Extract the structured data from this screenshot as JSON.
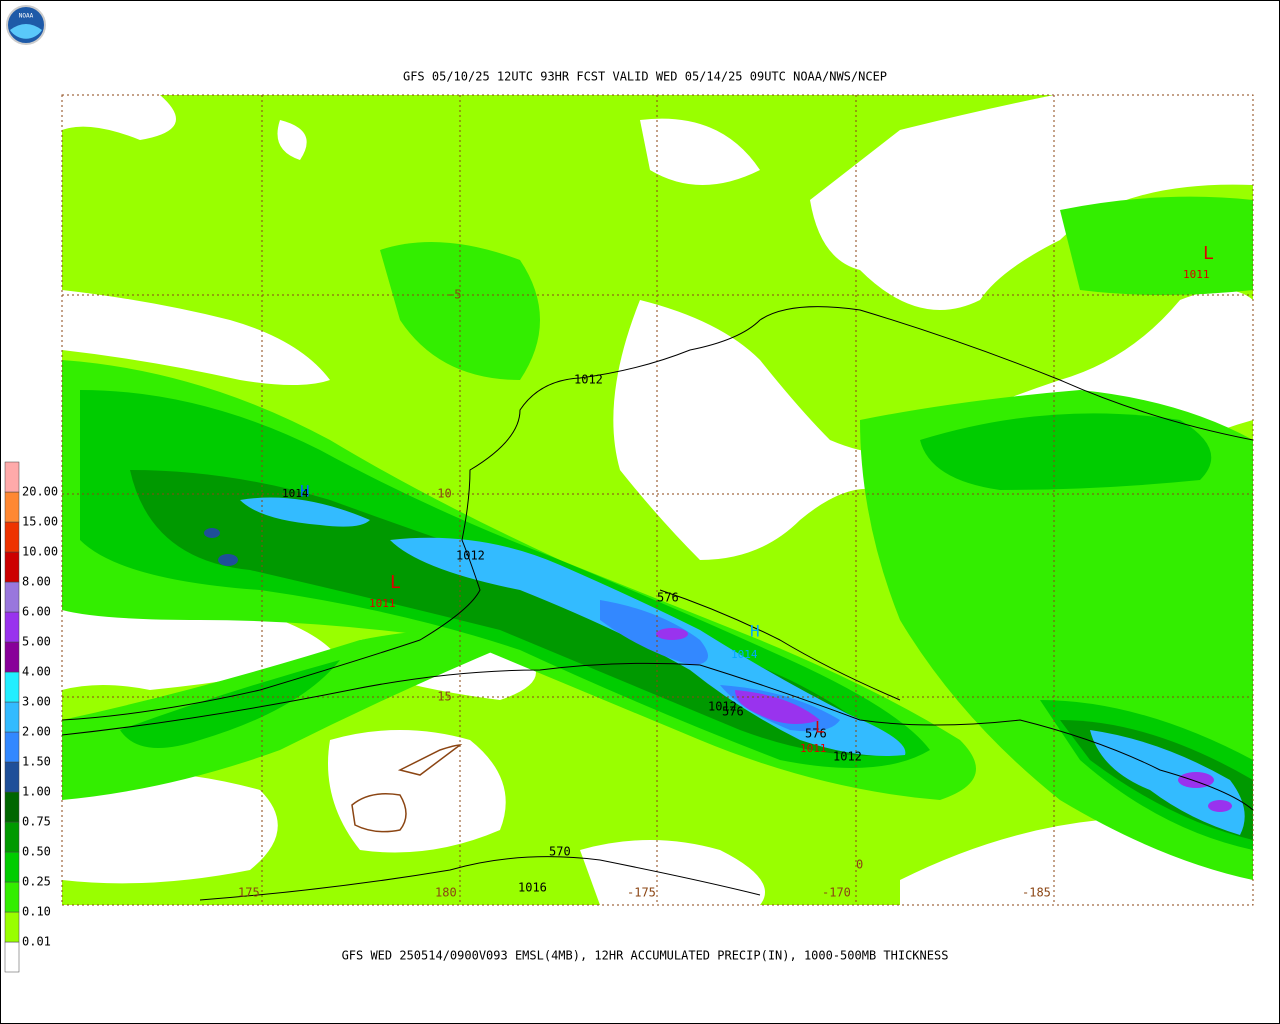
{
  "logo": "NOAA",
  "header": {
    "title": "GFS 05/10/25 12UTC 93HR FCST VALID WED 05/14/25 09UTC NOAA/NWS/NCEP"
  },
  "footer": {
    "caption": "GFS WED 250514/0900V093 EMSL(4MB), 12HR ACCUMULATED PRECIP(IN), 1000-500MB THICKNESS"
  },
  "legend": {
    "labels": [
      "0.01",
      "0.10",
      "0.25",
      "0.50",
      "0.75",
      "1.00",
      "1.50",
      "2.00",
      "3.00",
      "4.00",
      "5.00",
      "6.00",
      "8.00",
      "10.00",
      "15.00",
      "20.00"
    ],
    "colors": [
      "#ffffff",
      "#99ff00",
      "#33ee00",
      "#00cc00",
      "#009900",
      "#006600",
      "#1f4f99",
      "#3388ff",
      "#33bbff",
      "#22eeff",
      "#880099",
      "#9933ee",
      "#9977dd",
      "#cc0000",
      "#ee3300",
      "#ff8833",
      "#ffaaaa"
    ]
  },
  "grid_labels": [
    "-5",
    "-10",
    "-15",
    "175",
    "180",
    "-175",
    "-170",
    "-185",
    "0"
  ],
  "contour_labels": [
    "1012",
    "1012",
    "576",
    "1012",
    "576",
    "576",
    "1012",
    "570",
    "1016"
  ],
  "centers": [
    {
      "symbol": "L",
      "value": "1011"
    },
    {
      "symbol": "L",
      "value": "1011"
    },
    {
      "symbol": "L",
      "value": "1011"
    },
    {
      "symbol": "H",
      "value": "1014"
    },
    {
      "symbol": "H",
      "value": "1014"
    }
  ]
}
